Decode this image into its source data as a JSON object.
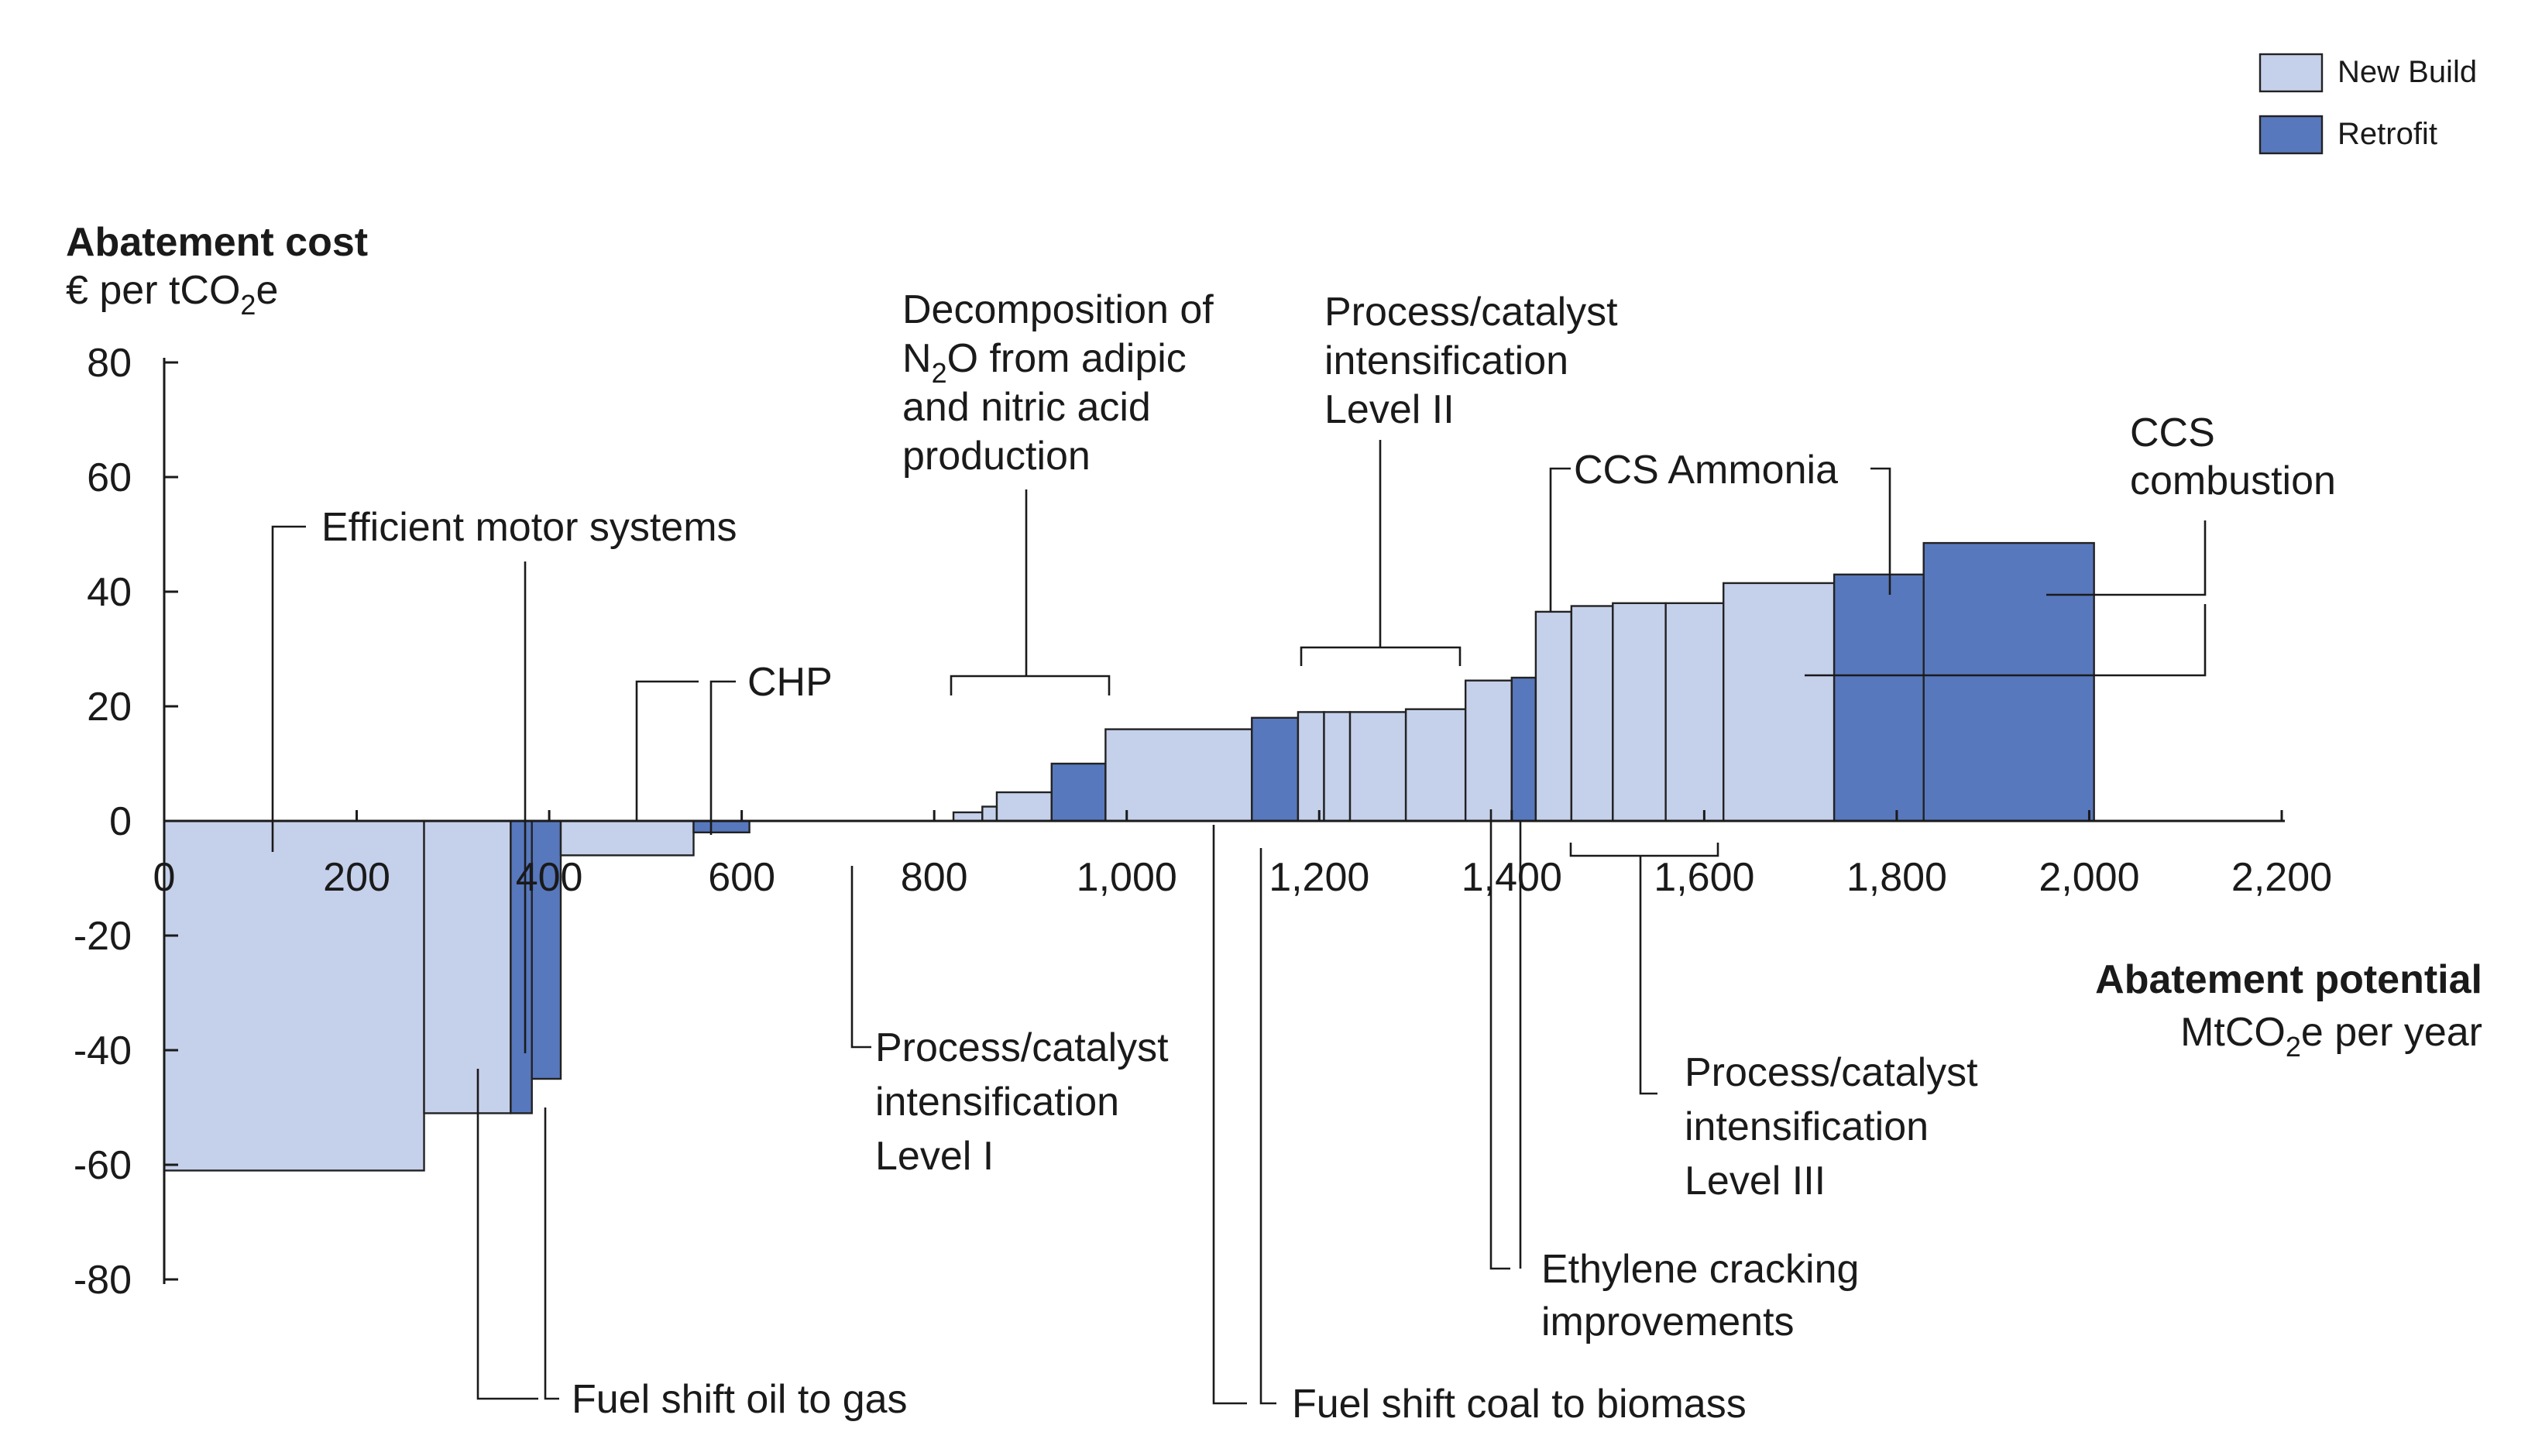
{
  "chart_data": {
    "type": "bar",
    "subtype": "marginal-abatement-cost-curve",
    "title": "",
    "ylabel": "Abatement cost",
    "ylabel_unit": [
      "€ per tCO",
      "2",
      "e"
    ],
    "xlabel": "Abatement potential",
    "xlabel_unit": [
      "MtCO",
      "2",
      "e per year"
    ],
    "xlim": [
      0,
      2200
    ],
    "ylim": [
      -80,
      80
    ],
    "x_ticks": [
      0,
      200,
      400,
      600,
      800,
      1000,
      1200,
      1400,
      1600,
      1800,
      2000,
      2200
    ],
    "x_tick_labels": [
      "0",
      "200",
      "400",
      "600",
      "800",
      "1,000",
      "1,200",
      "1,400",
      "1,600",
      "1,800",
      "2,000",
      "2,200"
    ],
    "y_ticks": [
      80,
      60,
      40,
      20,
      0,
      -20,
      -40,
      -60,
      -80
    ],
    "y_tick_labels": [
      "80",
      "60",
      "40",
      "20",
      "0",
      "-20",
      "-40",
      "-60",
      "-80"
    ],
    "legend": {
      "position": "top-right",
      "items": [
        {
          "label": "New Build",
          "color": "#c5d0ea"
        },
        {
          "label": "Retrofit",
          "color": "#5878bd"
        }
      ]
    },
    "bars": [
      {
        "x0": 0,
        "x1": 270,
        "y": -61,
        "series": "New Build"
      },
      {
        "x0": 270,
        "x1": 360,
        "y": -51,
        "series": "New Build"
      },
      {
        "x0": 360,
        "x1": 382,
        "y": -51,
        "series": "Retrofit"
      },
      {
        "x0": 382,
        "x1": 412,
        "y": -45,
        "series": "Retrofit"
      },
      {
        "x0": 412,
        "x1": 550,
        "y": -6,
        "series": "New Build"
      },
      {
        "x0": 550,
        "x1": 608,
        "y": -2,
        "series": "Retrofit"
      },
      {
        "x0": 820,
        "x1": 850,
        "y": 1.5,
        "series": "New Build"
      },
      {
        "x0": 850,
        "x1": 865,
        "y": 2.5,
        "series": "New Build"
      },
      {
        "x0": 865,
        "x1": 922,
        "y": 5,
        "series": "New Build"
      },
      {
        "x0": 922,
        "x1": 978,
        "y": 10,
        "series": "Retrofit"
      },
      {
        "x0": 978,
        "x1": 1130,
        "y": 16,
        "series": "New Build"
      },
      {
        "x0": 1130,
        "x1": 1178,
        "y": 18,
        "series": "Retrofit"
      },
      {
        "x0": 1178,
        "x1": 1205,
        "y": 19,
        "series": "New Build"
      },
      {
        "x0": 1205,
        "x1": 1232,
        "y": 19,
        "series": "New Build"
      },
      {
        "x0": 1232,
        "x1": 1290,
        "y": 19,
        "series": "New Build"
      },
      {
        "x0": 1290,
        "x1": 1352,
        "y": 19.5,
        "series": "New Build"
      },
      {
        "x0": 1352,
        "x1": 1400,
        "y": 24.5,
        "series": "New Build"
      },
      {
        "x0": 1400,
        "x1": 1425,
        "y": 25,
        "series": "Retrofit"
      },
      {
        "x0": 1425,
        "x1": 1462,
        "y": 36.5,
        "series": "New Build"
      },
      {
        "x0": 1462,
        "x1": 1505,
        "y": 37.5,
        "series": "New Build"
      },
      {
        "x0": 1505,
        "x1": 1560,
        "y": 38,
        "series": "New Build"
      },
      {
        "x0": 1560,
        "x1": 1620,
        "y": 38,
        "series": "New Build"
      },
      {
        "x0": 1620,
        "x1": 1735,
        "y": 41.5,
        "series": "New Build"
      },
      {
        "x0": 1735,
        "x1": 1828,
        "y": 43,
        "series": "Retrofit"
      },
      {
        "x0": 1828,
        "x1": 2005,
        "y": 48.5,
        "series": "Retrofit"
      }
    ],
    "annotations": [
      {
        "id": "motor",
        "lines": [
          "Efficient motor systems"
        ]
      },
      {
        "id": "chp",
        "lines": [
          "CHP"
        ]
      },
      {
        "id": "n2o",
        "lines": [
          "Decomposition of",
          "N2O from adipic",
          "and nitric acid",
          "production"
        ]
      },
      {
        "id": "pc2",
        "lines": [
          "Process/catalyst",
          "intensification",
          "Level II"
        ]
      },
      {
        "id": "ccsamm",
        "lines": [
          "CCS Ammonia"
        ]
      },
      {
        "id": "ccscomb",
        "lines": [
          "CCS",
          "combustion"
        ]
      },
      {
        "id": "pc1",
        "lines": [
          "Process/catalyst",
          "intensification",
          "Level I"
        ]
      },
      {
        "id": "pc3",
        "lines": [
          "Process/catalyst",
          "intensification",
          "Level III"
        ]
      },
      {
        "id": "eth",
        "lines": [
          "Ethylene cracking",
          "improvements"
        ]
      },
      {
        "id": "fuelgas",
        "lines": [
          "Fuel shift oil to gas"
        ]
      },
      {
        "id": "fuelbio",
        "lines": [
          "Fuel shift coal to biomass"
        ]
      }
    ]
  }
}
